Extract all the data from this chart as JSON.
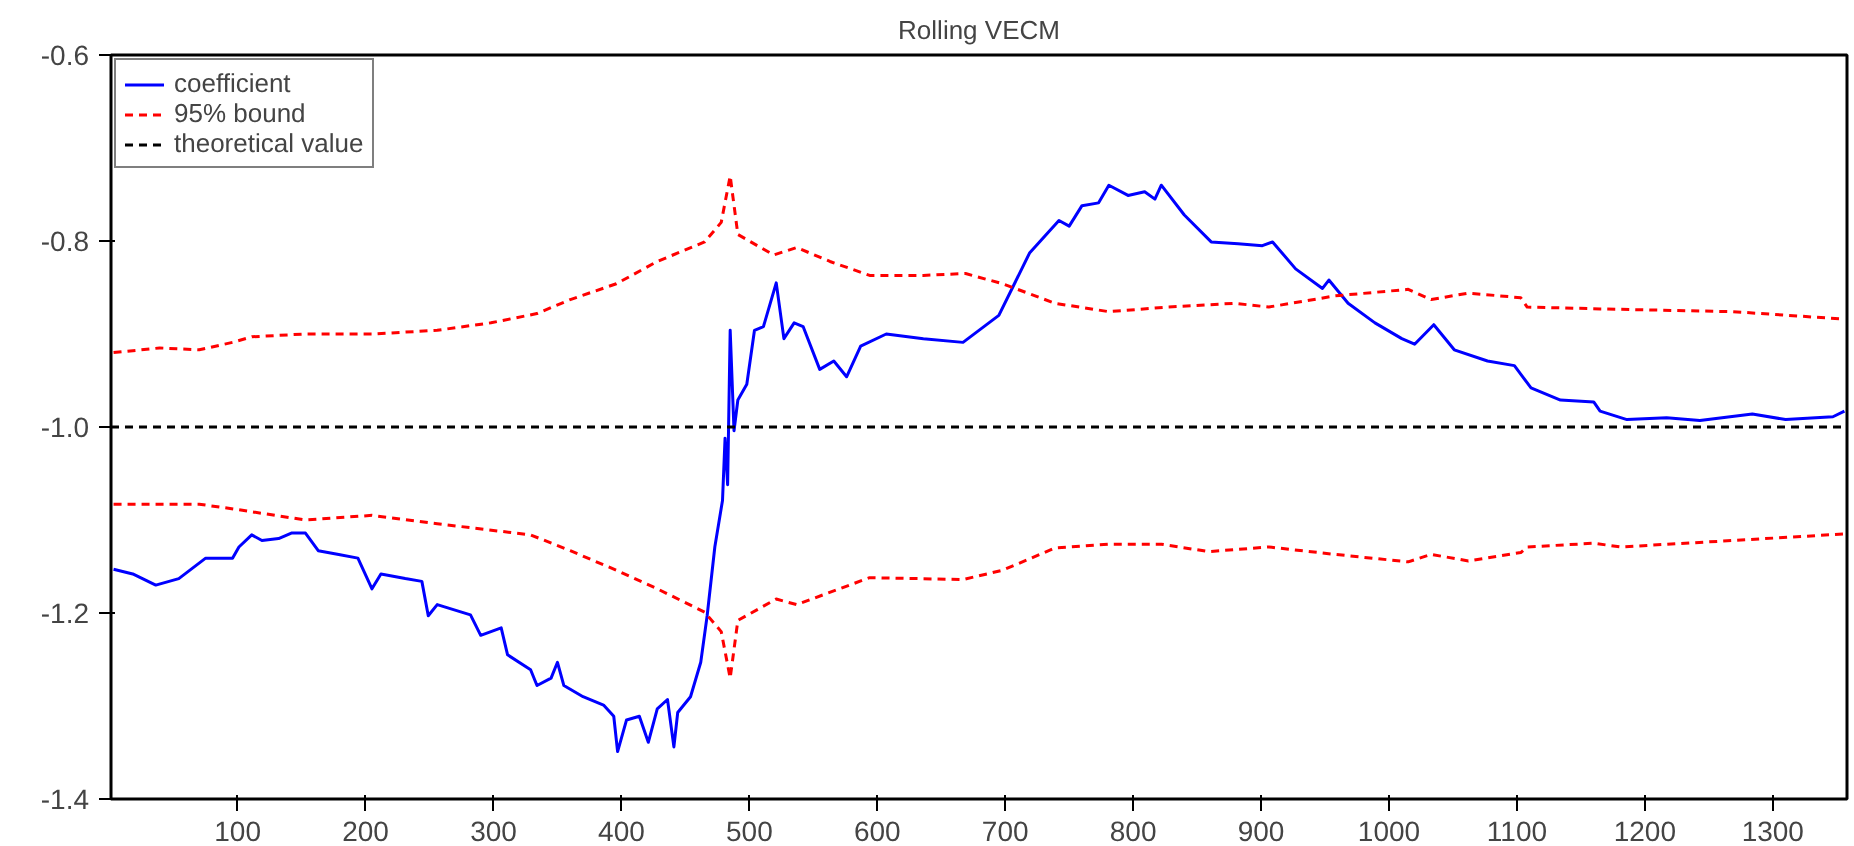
{
  "chart_data": {
    "type": "line",
    "title": "Rolling VECM",
    "series": [
      {
        "name": "coefficient",
        "color": "#0000ff",
        "line_style": "solid",
        "x": [
          3,
          18,
          36,
          54,
          75,
          96,
          101,
          111,
          119,
          132,
          142,
          153,
          163,
          179,
          194,
          205,
          212,
          231,
          244,
          249,
          256,
          282,
          290,
          306,
          311,
          329,
          334,
          345,
          350,
          355,
          370,
          386,
          394,
          397,
          404,
          414,
          421,
          428,
          436,
          441,
          444,
          454,
          462,
          467,
          473,
          479,
          481,
          483,
          485,
          488,
          491,
          498,
          504,
          511,
          521,
          527,
          535,
          542,
          555,
          566,
          576,
          587,
          607,
          636,
          667,
          695,
          719,
          742,
          750,
          760,
          773,
          781,
          796,
          809,
          817,
          822,
          840,
          861,
          882,
          901,
          909,
          927,
          948,
          953,
          968,
          989,
          1010,
          1020,
          1035,
          1051,
          1077,
          1098,
          1111,
          1134,
          1160,
          1165,
          1186,
          1217,
          1243,
          1284,
          1310,
          1347,
          1356
        ],
        "values": [
          -1.153,
          -1.158,
          -1.17,
          -1.163,
          -1.141,
          -1.141,
          -1.129,
          -1.116,
          -1.122,
          -1.12,
          -1.114,
          -1.114,
          -1.133,
          -1.137,
          -1.141,
          -1.174,
          -1.158,
          -1.163,
          -1.166,
          -1.203,
          -1.191,
          -1.202,
          -1.224,
          -1.216,
          -1.245,
          -1.261,
          -1.278,
          -1.27,
          -1.253,
          -1.278,
          -1.29,
          -1.299,
          -1.311,
          -1.349,
          -1.315,
          -1.311,
          -1.339,
          -1.303,
          -1.293,
          -1.344,
          -1.307,
          -1.29,
          -1.253,
          -1.203,
          -1.129,
          -1.079,
          -1.012,
          -1.062,
          -0.896,
          -1.004,
          -0.971,
          -0.954,
          -0.896,
          -0.892,
          -0.845,
          -0.905,
          -0.888,
          -0.892,
          -0.938,
          -0.929,
          -0.946,
          -0.913,
          -0.9,
          -0.905,
          -0.909,
          -0.88,
          -0.813,
          -0.778,
          -0.784,
          -0.762,
          -0.759,
          -0.74,
          -0.751,
          -0.747,
          -0.755,
          -0.74,
          -0.772,
          -0.801,
          -0.803,
          -0.805,
          -0.801,
          -0.83,
          -0.851,
          -0.842,
          -0.867,
          -0.888,
          -0.905,
          -0.911,
          -0.89,
          -0.917,
          -0.929,
          -0.934,
          -0.958,
          -0.971,
          -0.973,
          -0.983,
          -0.992,
          -0.99,
          -0.993,
          -0.986,
          -0.992,
          -0.989,
          -0.983
        ]
      },
      {
        "name": "95% bound",
        "color": "#ff0000",
        "line_style": "dashed",
        "x": [
          3,
          39,
          70,
          96,
          111,
          153,
          205,
          256,
          298,
          334,
          360,
          396,
          428,
          465,
          478,
          485,
          491,
          519,
          537,
          563,
          594,
          636,
          669,
          698,
          739,
          781,
          827,
          879,
          906,
          958,
          1015,
          1033,
          1062,
          1103,
          1108,
          1165,
          1269,
          1356
        ],
        "values": [
          -0.92,
          -0.915,
          -0.917,
          -0.909,
          -0.903,
          -0.9,
          -0.9,
          -0.896,
          -0.888,
          -0.878,
          -0.863,
          -0.846,
          -0.822,
          -0.801,
          -0.78,
          -0.73,
          -0.793,
          -0.815,
          -0.807,
          -0.822,
          -0.837,
          -0.837,
          -0.835,
          -0.846,
          -0.867,
          -0.876,
          -0.871,
          -0.867,
          -0.871,
          -0.859,
          -0.852,
          -0.863,
          -0.856,
          -0.861,
          -0.871,
          -0.873,
          -0.876,
          -0.884
        ]
      },
      {
        "color": "#ff0000",
        "line_style": "dashed",
        "x": [
          3,
          70,
          101,
          153,
          205,
          256,
          329,
          360,
          396,
          428,
          465,
          478,
          485,
          491,
          521,
          537,
          594,
          667,
          698,
          739,
          781,
          822,
          859,
          906,
          958,
          1015,
          1033,
          1062,
          1103,
          1108,
          1160,
          1181,
          1269,
          1356
        ],
        "values": [
          -1.083,
          -1.083,
          -1.089,
          -1.1,
          -1.095,
          -1.104,
          -1.116,
          -1.133,
          -1.154,
          -1.174,
          -1.199,
          -1.22,
          -1.27,
          -1.208,
          -1.185,
          -1.191,
          -1.162,
          -1.164,
          -1.154,
          -1.13,
          -1.126,
          -1.126,
          -1.134,
          -1.129,
          -1.137,
          -1.145,
          -1.137,
          -1.144,
          -1.135,
          -1.129,
          -1.125,
          -1.129,
          -1.122,
          -1.115
        ]
      }
    ],
    "ref_lines": [
      {
        "axis": "y",
        "value": -1.0,
        "label": "theoretical value",
        "color": "#000000",
        "line_style": "dashed"
      }
    ],
    "xlim": [
      1,
      1358
    ],
    "xticks": [
      100,
      200,
      300,
      400,
      500,
      600,
      700,
      800,
      900,
      1000,
      1100,
      1200,
      1300
    ],
    "ylim": [
      -1.4,
      -0.6
    ],
    "yticks": [
      -0.6,
      -0.8,
      {
        "value": -1.0,
        "label": "-1.0"
      },
      -1.2,
      -1.4
    ],
    "grid": false,
    "legend": "top left"
  }
}
